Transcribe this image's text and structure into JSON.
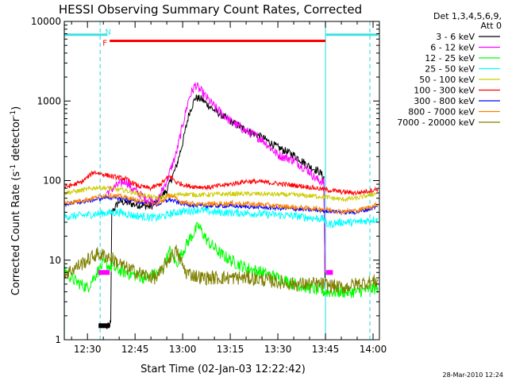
{
  "chart_data": {
    "type": "line",
    "title": "HESSI Observing Summary Count Rates, Corrected",
    "xlabel": "Start Time (02-Jan-03 12:22:42)",
    "ylabel": "Corrected Count Rate (s",
    "ylabel_sup": "-1",
    "ylabel_mid": " detector",
    "ylabel_tail": ")",
    "y_scale": "log",
    "ylim": [
      1,
      10000
    ],
    "xlim": [
      "12:22:42",
      "14:02:00"
    ],
    "x_ticks": [
      {
        "t": "12:30",
        "label": "12:30"
      },
      {
        "t": "12:45",
        "label": "12:45"
      },
      {
        "t": "13:00",
        "label": "13:00"
      },
      {
        "t": "13:15",
        "label": "13:15"
      },
      {
        "t": "13:30",
        "label": "13:30"
      },
      {
        "t": "13:45",
        "label": "13:45"
      },
      {
        "t": "14:00",
        "label": "14:00"
      }
    ],
    "y_ticks": [
      {
        "v": 1,
        "label": "1"
      },
      {
        "v": 10,
        "label": "10"
      },
      {
        "v": 100,
        "label": "100"
      },
      {
        "v": 1000,
        "label": "1000"
      },
      {
        "v": 10000,
        "label": "10000"
      }
    ],
    "legend_header": [
      "Det 1,3,4,5,6,9,",
      "Att 0"
    ],
    "legend_position": "right",
    "grid": false,
    "series": [
      {
        "name": "3 - 6 keV",
        "color": "#000000",
        "noise": 0.05,
        "points": [
          [
            "12:36:00",
            1.4
          ],
          [
            "12:37:20",
            1.6
          ],
          [
            "12:37:40",
            40
          ],
          [
            "12:40:00",
            55
          ],
          [
            "12:45:00",
            50
          ],
          [
            "12:50:00",
            47
          ],
          [
            "12:55:00",
            75
          ],
          [
            "12:58:00",
            150
          ],
          [
            "13:00:00",
            300
          ],
          [
            "13:02:00",
            700
          ],
          [
            "13:04:00",
            1100
          ],
          [
            "13:06:00",
            1050
          ],
          [
            "13:10:00",
            760
          ],
          [
            "13:15:00",
            560
          ],
          [
            "13:20:00",
            430
          ],
          [
            "13:25:00",
            350
          ],
          [
            "13:30:00",
            260
          ],
          [
            "13:35:00",
            210
          ],
          [
            "13:40:00",
            150
          ],
          [
            "13:43:00",
            130
          ],
          [
            "13:44:30",
            110
          ],
          [
            "13:44:50",
            6
          ]
        ]
      },
      {
        "name": "6 - 12 keV",
        "color": "#ff00ff",
        "noise": 0.06,
        "points": [
          [
            "12:36:00",
            70
          ],
          [
            "12:38:00",
            80
          ],
          [
            "12:40:00",
            90
          ],
          [
            "12:42:00",
            100
          ],
          [
            "12:44:00",
            80
          ],
          [
            "12:48:00",
            60
          ],
          [
            "12:52:00",
            55
          ],
          [
            "12:55:00",
            100
          ],
          [
            "12:58:00",
            220
          ],
          [
            "13:00:00",
            500
          ],
          [
            "13:02:00",
            1100
          ],
          [
            "13:04:00",
            1600
          ],
          [
            "13:06:00",
            1300
          ],
          [
            "13:10:00",
            850
          ],
          [
            "13:15:00",
            560
          ],
          [
            "13:20:00",
            420
          ],
          [
            "13:25:00",
            330
          ],
          [
            "13:30:00",
            210
          ],
          [
            "13:35:00",
            180
          ],
          [
            "13:40:00",
            130
          ],
          [
            "13:42:00",
            105
          ],
          [
            "13:44:30",
            95
          ],
          [
            "13:44:50",
            7
          ]
        ]
      },
      {
        "name": "12 - 25 keV",
        "color": "#00ff00",
        "noise": 0.08,
        "points": [
          [
            "12:22:42",
            8
          ],
          [
            "12:24:00",
            6.5
          ],
          [
            "12:26:00",
            5.5
          ],
          [
            "12:30:00",
            4.5
          ],
          [
            "12:33:00",
            7
          ],
          [
            "12:35:00",
            9
          ],
          [
            "12:38:00",
            8
          ],
          [
            "12:42:00",
            7
          ],
          [
            "12:48:00",
            6
          ],
          [
            "12:53:00",
            7
          ],
          [
            "12:56:00",
            13
          ],
          [
            "12:58:00",
            9
          ],
          [
            "13:02:00",
            18
          ],
          [
            "13:05:00",
            27
          ],
          [
            "13:08:00",
            17
          ],
          [
            "13:12:00",
            12
          ],
          [
            "13:15:00",
            10
          ],
          [
            "13:20:00",
            8
          ],
          [
            "13:25:00",
            7
          ],
          [
            "13:30:00",
            6
          ],
          [
            "13:35:00",
            5
          ],
          [
            "13:40:00",
            4.5
          ],
          [
            "13:45:00",
            4
          ],
          [
            "13:50:00",
            4
          ],
          [
            "13:55:00",
            4
          ],
          [
            "14:01:30",
            4.5
          ]
        ]
      },
      {
        "name": "25 - 50 keV",
        "color": "#00ffff",
        "noise": 0.05,
        "points": [
          [
            "12:22:42",
            35
          ],
          [
            "12:30:00",
            37
          ],
          [
            "12:35:00",
            39
          ],
          [
            "12:40:00",
            40
          ],
          [
            "12:45:00",
            36
          ],
          [
            "12:52:00",
            34
          ],
          [
            "12:58:00",
            40
          ],
          [
            "13:05:00",
            43
          ],
          [
            "13:10:00",
            40
          ],
          [
            "13:20:00",
            39
          ],
          [
            "13:30:00",
            37
          ],
          [
            "13:35:00",
            36
          ],
          [
            "13:40:00",
            34
          ],
          [
            "13:44:30",
            33
          ],
          [
            "13:45:30",
            28
          ],
          [
            "13:50:00",
            30
          ],
          [
            "13:55:00",
            30
          ],
          [
            "14:01:30",
            33
          ]
        ]
      },
      {
        "name": "50 - 100 keV",
        "color": "#cccc00",
        "noise": 0.03,
        "points": [
          [
            "12:22:42",
            70
          ],
          [
            "12:28:00",
            75
          ],
          [
            "12:33:00",
            82
          ],
          [
            "12:37:00",
            80
          ],
          [
            "12:42:00",
            75
          ],
          [
            "12:48:00",
            65
          ],
          [
            "12:52:00",
            60
          ],
          [
            "12:56:00",
            64
          ],
          [
            "13:00:00",
            68
          ],
          [
            "13:05:00",
            66
          ],
          [
            "13:15:00",
            68
          ],
          [
            "13:25:00",
            68
          ],
          [
            "13:35:00",
            66
          ],
          [
            "13:44:00",
            63
          ],
          [
            "13:50:00",
            58
          ],
          [
            "13:55:00",
            60
          ],
          [
            "14:01:30",
            70
          ]
        ]
      },
      {
        "name": "100 - 300 keV",
        "color": "#ff0000",
        "noise": 0.03,
        "points": [
          [
            "12:22:42",
            82
          ],
          [
            "12:28:00",
            95
          ],
          [
            "12:32:00",
            128
          ],
          [
            "12:35:00",
            120
          ],
          [
            "12:38:00",
            112
          ],
          [
            "12:42:00",
            105
          ],
          [
            "12:46:00",
            85
          ],
          [
            "12:50:00",
            80
          ],
          [
            "12:53:00",
            90
          ],
          [
            "12:56:00",
            115
          ],
          [
            "12:58:00",
            95
          ],
          [
            "13:02:00",
            85
          ],
          [
            "13:08:00",
            82
          ],
          [
            "13:15:00",
            90
          ],
          [
            "13:20:00",
            98
          ],
          [
            "13:25:00",
            96
          ],
          [
            "13:32:00",
            90
          ],
          [
            "13:38:00",
            85
          ],
          [
            "13:44:00",
            78
          ],
          [
            "13:50:00",
            72
          ],
          [
            "13:55:00",
            70
          ],
          [
            "14:01:30",
            78
          ]
        ]
      },
      {
        "name": "300 - 800 keV",
        "color": "#0000ff",
        "noise": 0.025,
        "points": [
          [
            "12:22:42",
            50
          ],
          [
            "12:30:00",
            55
          ],
          [
            "12:36:00",
            62
          ],
          [
            "12:42:00",
            58
          ],
          [
            "12:48:00",
            52
          ],
          [
            "12:52:00",
            50
          ],
          [
            "12:56:00",
            58
          ],
          [
            "12:59:00",
            52
          ],
          [
            "13:05:00",
            48
          ],
          [
            "13:15:00",
            48
          ],
          [
            "13:25:00",
            46
          ],
          [
            "13:35:00",
            44
          ],
          [
            "13:44:00",
            42
          ],
          [
            "13:50:00",
            40
          ],
          [
            "13:55:00",
            40
          ],
          [
            "14:01:30",
            47
          ]
        ]
      },
      {
        "name": "800 - 7000 keV",
        "color": "#ff7f00",
        "noise": 0.03,
        "points": [
          [
            "12:22:42",
            52
          ],
          [
            "12:30:00",
            58
          ],
          [
            "12:36:00",
            66
          ],
          [
            "12:42:00",
            62
          ],
          [
            "12:48:00",
            53
          ],
          [
            "12:52:00",
            50
          ],
          [
            "12:56:00",
            66
          ],
          [
            "12:59:00",
            55
          ],
          [
            "13:05:00",
            50
          ],
          [
            "13:15:00",
            52
          ],
          [
            "13:25:00",
            50
          ],
          [
            "13:35:00",
            46
          ],
          [
            "13:44:00",
            44
          ],
          [
            "13:50:00",
            41
          ],
          [
            "13:55:00",
            42
          ],
          [
            "14:01:30",
            50
          ]
        ]
      },
      {
        "name": "7000 - 20000 keV",
        "color": "#7f7f00",
        "noise": 0.09,
        "points": [
          [
            "12:22:42",
            6.5
          ],
          [
            "12:26:00",
            8
          ],
          [
            "12:30:00",
            10
          ],
          [
            "12:33:00",
            12
          ],
          [
            "12:37:00",
            11
          ],
          [
            "12:42:00",
            8
          ],
          [
            "12:48:00",
            6.5
          ],
          [
            "12:52:00",
            6
          ],
          [
            "12:56:00",
            11
          ],
          [
            "12:58:00",
            13
          ],
          [
            "13:01:00",
            7
          ],
          [
            "13:06:00",
            6
          ],
          [
            "13:12:00",
            6
          ],
          [
            "13:20:00",
            6
          ],
          [
            "13:28:00",
            5.5
          ],
          [
            "13:35:00",
            5
          ],
          [
            "13:44:00",
            5
          ],
          [
            "13:50:00",
            4.5
          ],
          [
            "13:55:00",
            5
          ],
          [
            "14:01:30",
            5.5
          ]
        ]
      }
    ],
    "flags": [
      {
        "name": "night",
        "label": "N",
        "color": "#40e0e0",
        "spans": [
          [
            "12:22:42",
            "12:36:20"
          ],
          [
            "13:45:10",
            "14:01:40"
          ]
        ],
        "level": 6800,
        "label_at": "12:36:30"
      },
      {
        "name": "flare",
        "label": "F",
        "color": "#ff0000",
        "spans": [
          [
            "12:37:00",
            "13:45:00"
          ]
        ],
        "level": 5700,
        "label_at": "12:35:30"
      }
    ],
    "attenuator_marks": [
      {
        "color": "#ff00ff",
        "spans": [
          [
            "12:33:30",
            "12:37:00"
          ],
          [
            "13:45:10",
            "13:47:20"
          ]
        ],
        "level": 7
      },
      {
        "color": "#000000",
        "spans": [
          [
            "12:33:30",
            "12:37:00"
          ]
        ],
        "level": 1.5
      }
    ],
    "vertical_lines": [
      {
        "t": "12:22:42",
        "color": "#40e0e0",
        "style": "solid"
      },
      {
        "t": "12:34:00",
        "color": "#40e0e0",
        "style": "dashed"
      },
      {
        "t": "13:45:00",
        "color": "#40e0e0",
        "style": "solid"
      },
      {
        "t": "13:59:00",
        "color": "#40e0e0",
        "style": "dashed"
      }
    ],
    "footer_date": "28-Mar-2010 12:24"
  }
}
